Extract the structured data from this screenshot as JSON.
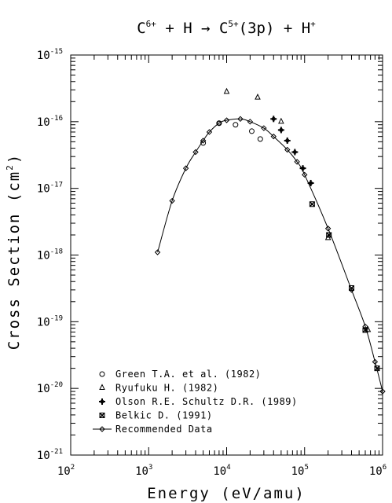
{
  "chart_data": {
    "type": "scatter",
    "title": {
      "parts": [
        {
          "t": "C",
          "sup": "6+"
        },
        {
          "t": " + H → C",
          "sup": "5+"
        },
        {
          "t": "(3p) + H",
          "sup": "+"
        }
      ]
    },
    "xlabel": "Energy (eV/amu)",
    "ylabel": "Cross Section (cm",
    "ylabel_sup": "2",
    "ylabel_close": ")",
    "x_scale": "log",
    "y_scale": "log",
    "xlim": [
      100,
      1000000
    ],
    "ylim": [
      1e-21,
      1e-15
    ],
    "x_ticks": [
      {
        "base": "10",
        "exp": "2"
      },
      {
        "base": "10",
        "exp": "3"
      },
      {
        "base": "10",
        "exp": "4"
      },
      {
        "base": "10",
        "exp": "5"
      },
      {
        "base": "10",
        "exp": "6"
      }
    ],
    "y_ticks": [
      {
        "base": "10",
        "exp": "-15"
      },
      {
        "base": "10",
        "exp": "-16"
      },
      {
        "base": "10",
        "exp": "-17"
      },
      {
        "base": "10",
        "exp": "-18"
      },
      {
        "base": "10",
        "exp": "-19"
      },
      {
        "base": "10",
        "exp": "-20"
      },
      {
        "base": "10",
        "exp": "-21"
      }
    ],
    "grid": false,
    "legend_position": "bottom-left",
    "series": [
      {
        "name": "Green T.A. et al. (1982)",
        "marker": "circle",
        "points": [
          [
            5000,
            4.8e-17
          ],
          [
            8000,
            9.5e-17
          ],
          [
            13000,
            9e-17
          ],
          [
            21000,
            7.2e-17
          ],
          [
            27000,
            5.5e-17
          ]
        ]
      },
      {
        "name": "Ryufuku H. (1982)",
        "marker": "triangle",
        "points": [
          [
            10000,
            2.8e-16
          ],
          [
            25000,
            2.3e-16
          ],
          [
            50000,
            1e-16
          ],
          [
            200000,
            1.8e-18
          ],
          [
            650000,
            7.5e-20
          ]
        ]
      },
      {
        "name": "Olson R.E. Schultz D.R. (1989)",
        "marker": "plus",
        "points": [
          [
            40000,
            1.1e-16
          ],
          [
            50000,
            7.5e-17
          ],
          [
            60000,
            5.2e-17
          ],
          [
            75000,
            3.5e-17
          ],
          [
            95000,
            2e-17
          ],
          [
            120000,
            1.2e-17
          ]
        ]
      },
      {
        "name": "Belkic D. (1991)",
        "marker": "cross",
        "points": [
          [
            125000,
            5.8e-18
          ],
          [
            205000,
            2e-18
          ],
          [
            400000,
            3.2e-19
          ],
          [
            600000,
            7.5e-20
          ],
          [
            850000,
            2e-20
          ]
        ]
      },
      {
        "name": "Recommended Data",
        "marker": "diamond",
        "line": true,
        "points": [
          [
            1300,
            1.1e-18
          ],
          [
            2000,
            6.5e-18
          ],
          [
            3000,
            2e-17
          ],
          [
            4000,
            3.5e-17
          ],
          [
            5000,
            5.2e-17
          ],
          [
            6000,
            7e-17
          ],
          [
            8000,
            9.5e-17
          ],
          [
            10000,
            1.05e-16
          ],
          [
            15000,
            1.1e-16
          ],
          [
            20000,
            1e-16
          ],
          [
            30000,
            8e-17
          ],
          [
            40000,
            6e-17
          ],
          [
            60000,
            3.8e-17
          ],
          [
            80000,
            2.5e-17
          ],
          [
            100000,
            1.6e-17
          ],
          [
            200000,
            2.5e-18
          ],
          [
            400000,
            3e-19
          ],
          [
            600000,
            8.5e-20
          ],
          [
            800000,
            2.5e-20
          ],
          [
            1000000,
            9e-21
          ]
        ]
      }
    ]
  }
}
